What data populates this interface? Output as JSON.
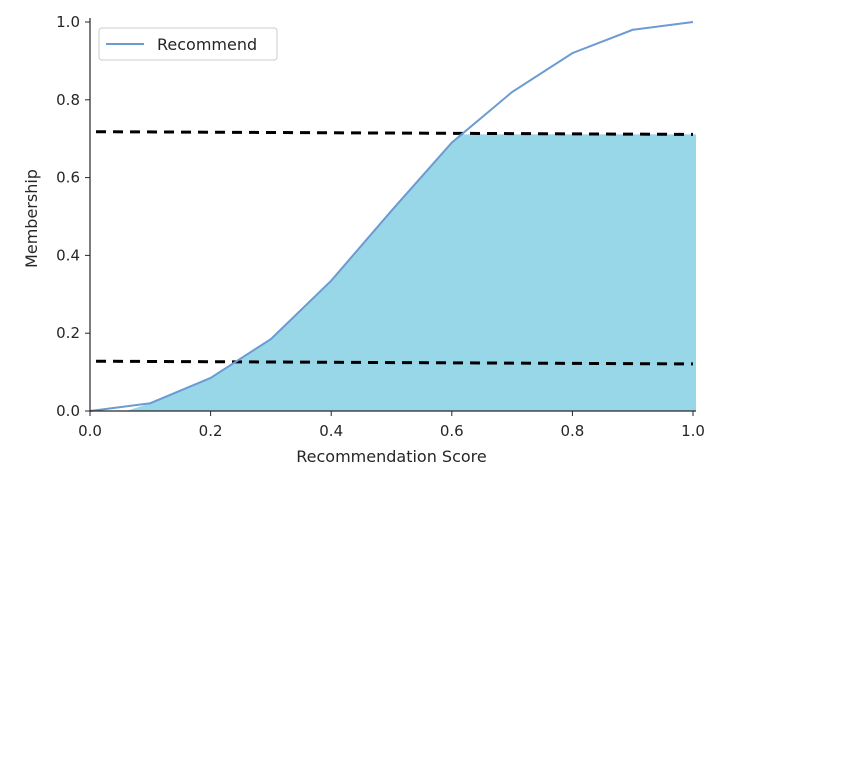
{
  "chart_data": {
    "type": "line",
    "title": "",
    "xlabel": "Recommendation Score",
    "ylabel": "Membership",
    "xlim": [
      0.0,
      1.0
    ],
    "ylim": [
      0.0,
      1.0
    ],
    "x_ticks": [
      "0.0",
      "0.2",
      "0.4",
      "0.6",
      "0.8",
      "1.0"
    ],
    "y_ticks": [
      "0.0",
      "0.2",
      "0.4",
      "0.6",
      "0.8",
      "1.0"
    ],
    "grid": false,
    "legend_position": "top-left",
    "series": [
      {
        "name": "Recommend",
        "color": "#6b9bd2",
        "x": [
          0.0,
          0.1,
          0.2,
          0.3,
          0.4,
          0.5,
          0.6,
          0.7,
          0.8,
          0.9,
          1.0
        ],
        "y": [
          0.0,
          0.02,
          0.085,
          0.185,
          0.335,
          0.515,
          0.69,
          0.82,
          0.92,
          0.98,
          1.0
        ]
      }
    ],
    "reference_lines": [
      {
        "style": "dashed",
        "color": "#000000",
        "y_start": 0.718,
        "y_end": 0.711
      },
      {
        "style": "dashed",
        "color": "#000000",
        "y_start": 0.128,
        "y_end": 0.121
      }
    ],
    "filled_region": {
      "color": "#98d7e8",
      "description_x": [
        0.0,
        0.1,
        0.2,
        0.3,
        0.4,
        0.5,
        0.6,
        0.62,
        1.0
      ],
      "upper_cap": 0.711
    }
  }
}
